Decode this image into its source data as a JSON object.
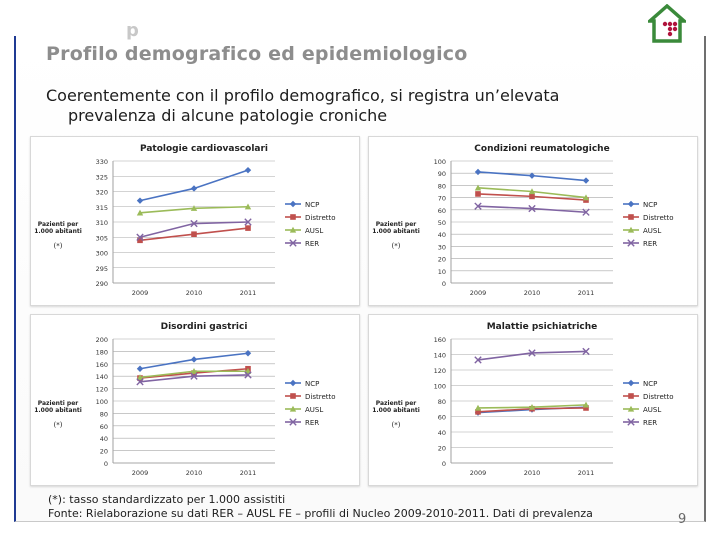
{
  "slide": {
    "title_ghost": "p",
    "title": "Profilo demografico ed epidemiologico",
    "subtitle_line1": "Coerentemente con il profilo demografico, si registra un’elevata",
    "subtitle_line2": "prevalenza di alcune patologie croniche",
    "footnote": "(*): tasso standardizzato per 1.000 assistiti",
    "source": "Fonte: Rielaborazione su dati RER – AUSL FE – profili di Nucleo 2009-2010-2011. Dati di prevalenza",
    "page_number": "9",
    "colors": {
      "title": "#8d8d8d",
      "frame_left": "#1f3a93",
      "logo": "#3a8a3a",
      "logo_dots": "#b0143c"
    }
  },
  "chart_data": [
    {
      "type": "line",
      "title": "Patologie cardiovascolari",
      "ylabel": "Pazienti per 1.000 abitanti",
      "star_note": "(*)",
      "categories": [
        "2009",
        "2010",
        "2011"
      ],
      "ylim": [
        290,
        330
      ],
      "yticks": [
        290,
        295,
        300,
        305,
        310,
        315,
        320,
        325,
        330
      ],
      "series": [
        {
          "name": "NCP",
          "values": [
            317,
            321,
            327
          ],
          "color": "#4a73c2",
          "marker": "diamond"
        },
        {
          "name": "Distretto",
          "values": [
            304,
            306,
            308
          ],
          "color": "#c0504d",
          "marker": "square"
        },
        {
          "name": "AUSL",
          "values": [
            313,
            314.5,
            315
          ],
          "color": "#9bbb59",
          "marker": "triangle"
        },
        {
          "name": "RER",
          "values": [
            305,
            309.5,
            310
          ],
          "color": "#8064a2",
          "marker": "x"
        }
      ]
    },
    {
      "type": "line",
      "title": "Condizioni reumatologiche",
      "ylabel": "Pazienti per 1.000 abitanti",
      "star_note": "(*)",
      "categories": [
        "2009",
        "2010",
        "2011"
      ],
      "ylim": [
        0,
        100
      ],
      "yticks": [
        0,
        10,
        20,
        30,
        40,
        50,
        60,
        70,
        80,
        90,
        100
      ],
      "series": [
        {
          "name": "NCP",
          "values": [
            91,
            88,
            84
          ],
          "color": "#4a73c2",
          "marker": "diamond"
        },
        {
          "name": "Distretto",
          "values": [
            73,
            71,
            68
          ],
          "color": "#c0504d",
          "marker": "square"
        },
        {
          "name": "AUSL",
          "values": [
            78,
            75,
            70
          ],
          "color": "#9bbb59",
          "marker": "triangle"
        },
        {
          "name": "RER",
          "values": [
            63,
            61,
            58
          ],
          "color": "#8064a2",
          "marker": "x"
        }
      ]
    },
    {
      "type": "line",
      "title": "Disordini gastrici",
      "ylabel": "Pazienti per 1.000 abitanti",
      "star_note": "(*)",
      "categories": [
        "2009",
        "2010",
        "2011"
      ],
      "ylim": [
        0,
        200
      ],
      "yticks": [
        0,
        20,
        40,
        60,
        80,
        100,
        120,
        140,
        160,
        180,
        200
      ],
      "series": [
        {
          "name": "NCP",
          "values": [
            152,
            167,
            177
          ],
          "color": "#4a73c2",
          "marker": "diamond"
        },
        {
          "name": "Distretto",
          "values": [
            137,
            145,
            152
          ],
          "color": "#c0504d",
          "marker": "square"
        },
        {
          "name": "AUSL",
          "values": [
            138,
            148,
            148
          ],
          "color": "#9bbb59",
          "marker": "triangle"
        },
        {
          "name": "RER",
          "values": [
            131,
            140,
            142
          ],
          "color": "#8064a2",
          "marker": "x"
        }
      ]
    },
    {
      "type": "line",
      "title": "Malattie psichiatriche",
      "ylabel": "Pazienti per 1.000 abitanti",
      "star_note": "(*)",
      "categories": [
        "2009",
        "2010",
        "2011"
      ],
      "ylim": [
        0,
        160
      ],
      "yticks": [
        0,
        20,
        40,
        60,
        80,
        100,
        120,
        140,
        160
      ],
      "series": [
        {
          "name": "NCP",
          "values": [
            65,
            69,
            72
          ],
          "color": "#4a73c2",
          "marker": "diamond"
        },
        {
          "name": "Distretto",
          "values": [
            66,
            70,
            71
          ],
          "color": "#c0504d",
          "marker": "square"
        },
        {
          "name": "AUSL",
          "values": [
            71,
            72,
            75
          ],
          "color": "#9bbb59",
          "marker": "triangle"
        },
        {
          "name": "RER",
          "values": [
            133,
            142,
            144
          ],
          "color": "#8064a2",
          "marker": "x"
        }
      ]
    }
  ]
}
